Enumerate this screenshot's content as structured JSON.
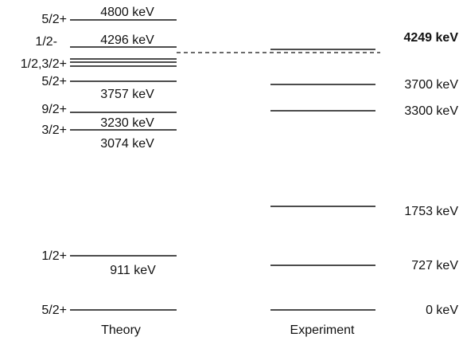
{
  "columns": {
    "theory": "Theory",
    "experiment": "Experiment"
  },
  "theory_levels": [
    {
      "spin": "5/2+",
      "energy": "4800 keV"
    },
    {
      "spin": "1/2-",
      "energy": "4296 keV"
    },
    {
      "spin": "1/2,3/2+",
      "energy": ""
    },
    {
      "spin": "5/2+",
      "energy": "3757 keV"
    },
    {
      "spin": "9/2+",
      "energy": "3230 keV"
    },
    {
      "spin": "3/2+",
      "energy": "3074 keV"
    },
    {
      "spin": "1/2+",
      "energy": "911 keV"
    },
    {
      "spin": "5/2+",
      "energy": ""
    }
  ],
  "experiment_levels": [
    {
      "energy": "4249 keV",
      "bold": true
    },
    {
      "energy": "3700 keV",
      "bold": false
    },
    {
      "energy": "3300 keV",
      "bold": false
    },
    {
      "energy": "1753 keV",
      "bold": false
    },
    {
      "energy": "727 keV",
      "bold": false
    },
    {
      "energy": "0 keV",
      "bold": false
    }
  ]
}
